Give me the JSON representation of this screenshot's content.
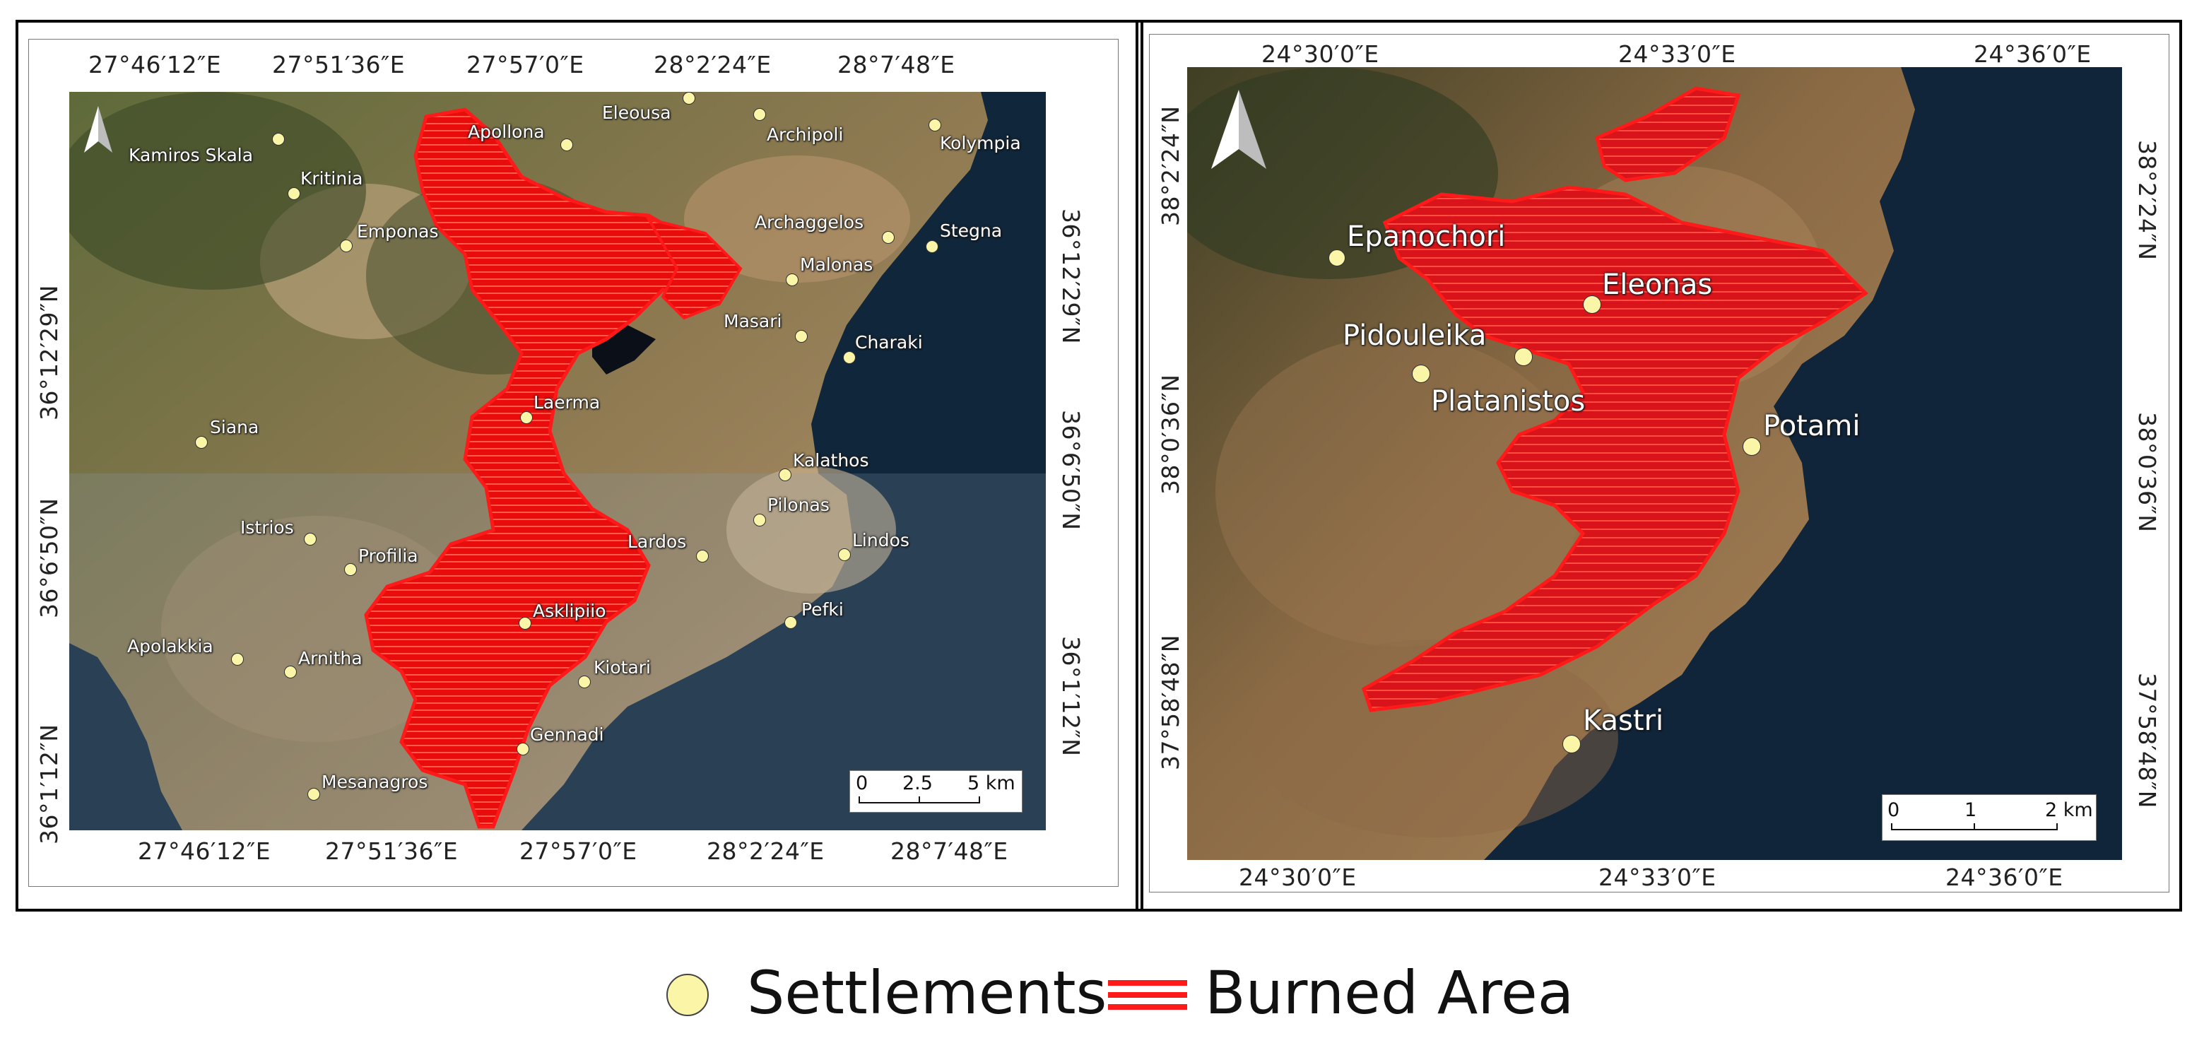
{
  "left_map": {
    "top_lon_labels": [
      "27°46′12″E",
      "27°51′36″E",
      "27°57′0″E",
      "28°2′24″E",
      "28°7′48″E"
    ],
    "bottom_lon_labels": [
      "27°46′12″E",
      "27°51′36″E",
      "27°57′0″E",
      "28°2′24″E",
      "28°7′48″E"
    ],
    "left_lat_labels": [
      "36°12′29″N",
      "36°6′50″N",
      "36°1′12″N"
    ],
    "right_lat_labels": [
      "36°12′29″N",
      "36°6′50″N",
      "36°1′12″N"
    ],
    "settlements": [
      "Kamiros Skala",
      "Kritinia",
      "Emponas",
      "Apollona",
      "Eleousa",
      "Archipoli",
      "Kolympia",
      "Archaggelos",
      "Stegna",
      "Malonas",
      "Masari",
      "Charaki",
      "Siana",
      "Laerma",
      "Kalathos",
      "Pilonas",
      "Lindos",
      "Istrios",
      "Profilia",
      "Lardos",
      "Asklipiio",
      "Pefki",
      "Apolakkia",
      "Arnitha",
      "Kiotari",
      "Gennadi",
      "Mesanagros"
    ],
    "scale": {
      "labels": [
        "0",
        "2.5",
        "5 km"
      ]
    }
  },
  "right_map": {
    "top_lon_labels": [
      "24°30′0″E",
      "24°33′0″E",
      "24°36′0″E"
    ],
    "bottom_lon_labels": [
      "24°30′0″E",
      "24°33′0″E",
      "24°36′0″E"
    ],
    "left_lat_labels": [
      "38°2′24″N",
      "38°0′36″N",
      "37°58′48″N"
    ],
    "right_lat_labels": [
      "38°2′24″N",
      "38°0′36″N",
      "37°58′48″N"
    ],
    "settlements": [
      "Epanochori",
      "Eleonas",
      "Pidouleika",
      "Platanistos",
      "Potami",
      "Kastri"
    ],
    "scale": {
      "labels": [
        "0",
        "1",
        "2 km"
      ]
    }
  },
  "legend": {
    "settlements_label": "Settlements",
    "burned_area_label": "Burned Area"
  },
  "colors": {
    "burned": "#ff1a1a",
    "settlement_fill": "#fbf5a8",
    "sea": "#0e2336",
    "land": "#9a7a52"
  }
}
